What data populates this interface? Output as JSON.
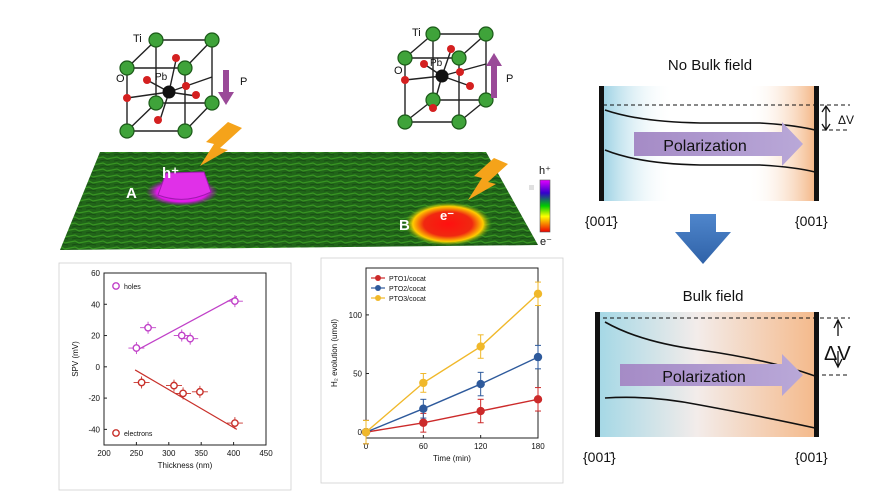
{
  "crystal": {
    "ti_label": "Ti",
    "o_label": "O",
    "pb_label": "Pb",
    "p_label": "P"
  },
  "map": {
    "label_a": "A",
    "label_b": "B",
    "hole_sign": "h⁺",
    "electron_sign": "e⁻",
    "scale_top": "h⁺",
    "scale_bottom": "e⁻"
  },
  "band": {
    "no_bulk_title": "No Bulk field",
    "bulk_title": "Bulk field",
    "polarization": "Polarization",
    "dv_label": "ΔV",
    "facet_left": "{001̄}",
    "facet_right": "{001}"
  },
  "chart_data": [
    {
      "type": "scatter",
      "xlabel": "Thickness (nm)",
      "ylabel": "SPV (mV)",
      "xlim": [
        200,
        450
      ],
      "ylim": [
        -50,
        60
      ],
      "xticks": [
        "200",
        "250",
        "300",
        "350",
        "400",
        "450"
      ],
      "yticks": [
        "60",
        "40",
        "20",
        "0",
        "-20",
        "-40"
      ],
      "series": [
        {
          "name": "holes",
          "color": "#c040c8",
          "points": [
            [
              250,
              12
            ],
            [
              268,
              25
            ],
            [
              320,
              20
            ],
            [
              333,
              18
            ],
            [
              402,
              42
            ]
          ],
          "fit": [
            [
              248,
              10
            ],
            [
              405,
              45
            ]
          ]
        },
        {
          "name": "electrons",
          "color": "#c8302a",
          "points": [
            [
              258,
              -10
            ],
            [
              308,
              -12
            ],
            [
              322,
              -17
            ],
            [
              348,
              -16
            ],
            [
              402,
              -36
            ]
          ],
          "fit": [
            [
              248,
              -2
            ],
            [
              405,
              -40
            ]
          ]
        }
      ]
    },
    {
      "type": "line",
      "xlabel": "Time (min)",
      "ylabel": "H₂ evolution (umol)",
      "xlim": [
        0,
        180
      ],
      "ylim": [
        -5,
        140
      ],
      "xticks": [
        "0",
        "60",
        "120",
        "180"
      ],
      "yticks": [
        "0",
        "50",
        "100"
      ],
      "x": [
        0,
        60,
        120,
        180
      ],
      "series": [
        {
          "name": "PTO1/cocat",
          "color": "#cc2a2a",
          "values": [
            0,
            8,
            18,
            28
          ],
          "err": [
            10,
            8,
            10,
            10
          ]
        },
        {
          "name": "PTO2/cocat",
          "color": "#2e5a9c",
          "values": [
            0,
            20,
            41,
            64
          ],
          "err": [
            10,
            8,
            10,
            10
          ]
        },
        {
          "name": "PTO3/cocat",
          "color": "#f0b82a",
          "values": [
            0,
            42,
            73,
            118
          ],
          "err": [
            10,
            8,
            10,
            10
          ]
        }
      ]
    }
  ]
}
